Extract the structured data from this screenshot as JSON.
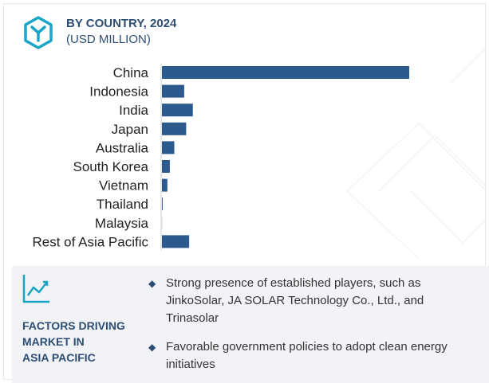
{
  "header": {
    "title": "BY COUNTRY, 2024",
    "subtitle": "(USD MILLION)",
    "logo_icon": "hexagon-y-logo-icon"
  },
  "colors": {
    "accent": "#2d5a8c",
    "heading": "#2d4d73",
    "axis": "#c8ccd2",
    "footer_bg": "#f1f3f7"
  },
  "chart_data": {
    "type": "bar",
    "orientation": "horizontal",
    "categories": [
      "China",
      "Indonesia",
      "India",
      "Japan",
      "Australia",
      "South Korea",
      "Vietnam",
      "Thailand",
      "Malaysia",
      "Rest of Asia Pacific"
    ],
    "values": [
      100,
      9,
      12.5,
      9.8,
      5,
      3.2,
      2.2,
      0.3,
      0.05,
      11
    ],
    "value_axis_labels": "none",
    "xlim": [
      0,
      100
    ],
    "grid": false,
    "legend": "none"
  },
  "footer": {
    "icon": "line-chart-trend-icon",
    "title": "FACTORS DRIVING\nMARKET IN\nASIA PACIFIC",
    "bullet_icon": "diamond-bullet-icon",
    "bullets": [
      "Strong presence of established players, such as JinkoSolar, JA SOLAR Technology Co., Ltd., and Trinasolar",
      "Favorable government policies to adopt clean energy initiatives"
    ]
  }
}
